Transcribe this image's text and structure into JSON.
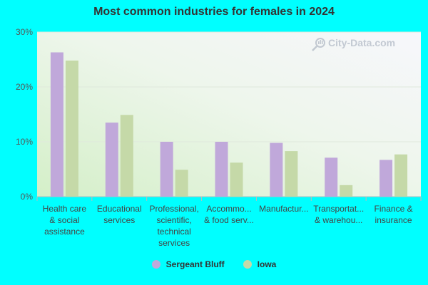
{
  "chart_data": {
    "type": "bar",
    "title": "Most common industries for females in 2024",
    "categories": [
      [
        "Health care",
        "& social",
        "assistance"
      ],
      [
        "Educational",
        "services"
      ],
      [
        "Professional,",
        "scientific,",
        "technical",
        "services"
      ],
      [
        "Accommo...",
        "& food serv..."
      ],
      [
        "Manufactur..."
      ],
      [
        "Transportat...",
        "& warehou..."
      ],
      [
        "Finance &",
        "insurance"
      ]
    ],
    "series": [
      {
        "name": "Sergeant Bluff",
        "color": "#c0a8da",
        "values": [
          26.3,
          13.5,
          10.0,
          10.0,
          9.8,
          7.1,
          6.7
        ]
      },
      {
        "name": "Iowa",
        "color": "#c5d9a8",
        "values": [
          24.8,
          14.9,
          4.9,
          6.2,
          8.3,
          2.1,
          7.7
        ]
      }
    ],
    "ylim": [
      0,
      30
    ],
    "yticks": [
      0,
      10,
      20,
      30
    ],
    "ytick_labels": [
      "0%",
      "10%",
      "20%",
      "30%"
    ],
    "grid": true,
    "legend_position": "bottom"
  }
}
